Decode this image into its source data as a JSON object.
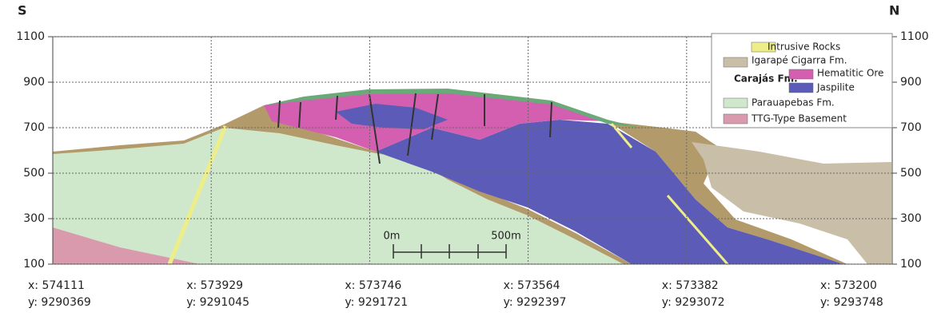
{
  "orientation": {
    "left": "S",
    "right": "N"
  },
  "axis": {
    "ylim": [
      100,
      1100
    ],
    "yticks": [
      100,
      300,
      500,
      700,
      900,
      1100
    ]
  },
  "coordinates": [
    {
      "x": "x: 574111",
      "y": "y: 9290369"
    },
    {
      "x": "x: 573929",
      "y": "y: 9291045"
    },
    {
      "x": "x: 573746",
      "y": "y: 9291721"
    },
    {
      "x": "x: 573564",
      "y": "y: 9292397"
    },
    {
      "x": "x: 573382",
      "y": "y: 9293072"
    },
    {
      "x": "x: 573200",
      "y": "y: 9293748"
    }
  ],
  "legend": {
    "group_label": "Carajás Fm.",
    "items": [
      {
        "label": "Intrusive Rocks",
        "color": "#eeee88"
      },
      {
        "label": "Igarapé Cigarra Fm.",
        "color": "#c9bfa8"
      },
      {
        "label": "Hematitic Ore",
        "color": "#d45fb0"
      },
      {
        "label": "Jaspilite",
        "color": "#5c5cb8"
      },
      {
        "label": "Parauapebas Fm.",
        "color": "#cfe8cc"
      },
      {
        "label": "TTG-Type Basement",
        "color": "#d99aae"
      }
    ]
  },
  "scale_bar": {
    "start": "0m",
    "end": "500m"
  }
}
